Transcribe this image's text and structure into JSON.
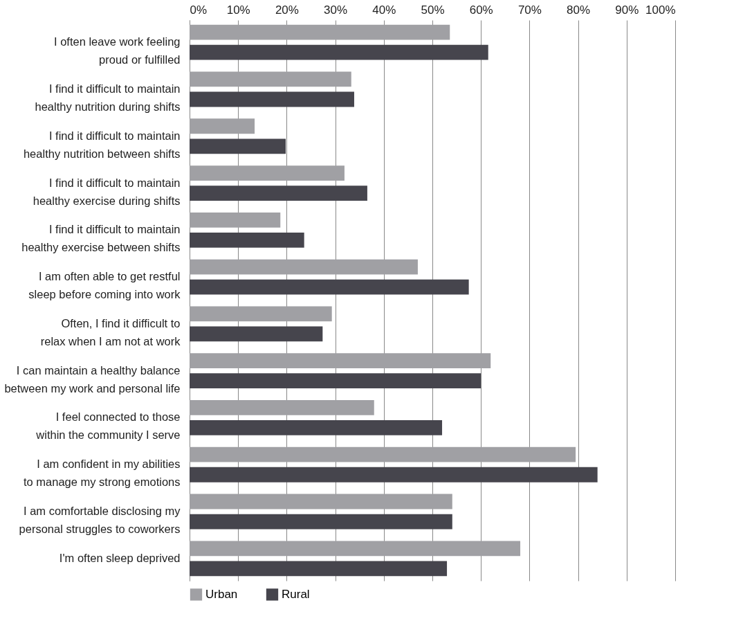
{
  "chart_data": {
    "type": "bar",
    "orientation": "horizontal",
    "categories": [
      "I often leave work feeling proud or fulfilled",
      "I find it difficult to maintain healthy nutrition during shifts",
      "I find it difficult to maintain healthy nutrition between shifts",
      "I find it difficult to maintain healthy exercise during shifts",
      "I find it difficult to maintain healthy exercise between shifts",
      "I am often able to get restful sleep before coming into work",
      "Often, I find it difficult to relax when I am not at work",
      "I can maintain a healthy balance between my work and personal life",
      "I feel connected to those within the community I serve",
      "I am confident in my abilities to manage my strong emotions",
      "I am comfortable disclosing my personal struggles to coworkers",
      "I'm often sleep deprived"
    ],
    "series": [
      {
        "name": "Urban",
        "color": "#a0a0a4",
        "values": [
          53.6,
          33.3,
          13.4,
          31.9,
          18.7,
          47.0,
          29.3,
          62.0,
          38.0,
          79.5,
          54.1,
          68.1
        ]
      },
      {
        "name": "Rural",
        "color": "#46454d",
        "values": [
          61.5,
          33.9,
          19.8,
          36.6,
          23.6,
          57.5,
          27.4,
          60.0,
          52.0,
          84.0,
          54.1,
          53.0
        ]
      }
    ],
    "xlim": [
      0,
      100
    ],
    "xticks": [
      {
        "value": 0,
        "label": "0%"
      },
      {
        "value": 10,
        "label": "10%"
      },
      {
        "value": 20,
        "label": "20%"
      },
      {
        "value": 30,
        "label": "30%"
      },
      {
        "value": 40,
        "label": "40%"
      },
      {
        "value": 50,
        "label": "50%"
      },
      {
        "value": 60,
        "label": "60%"
      },
      {
        "value": 70,
        "label": "70%"
      },
      {
        "value": 80,
        "label": "80%"
      },
      {
        "value": 90,
        "label": "90%"
      },
      {
        "value": 100,
        "label": "100%"
      }
    ],
    "grid": "x",
    "legend": "bottom left"
  }
}
